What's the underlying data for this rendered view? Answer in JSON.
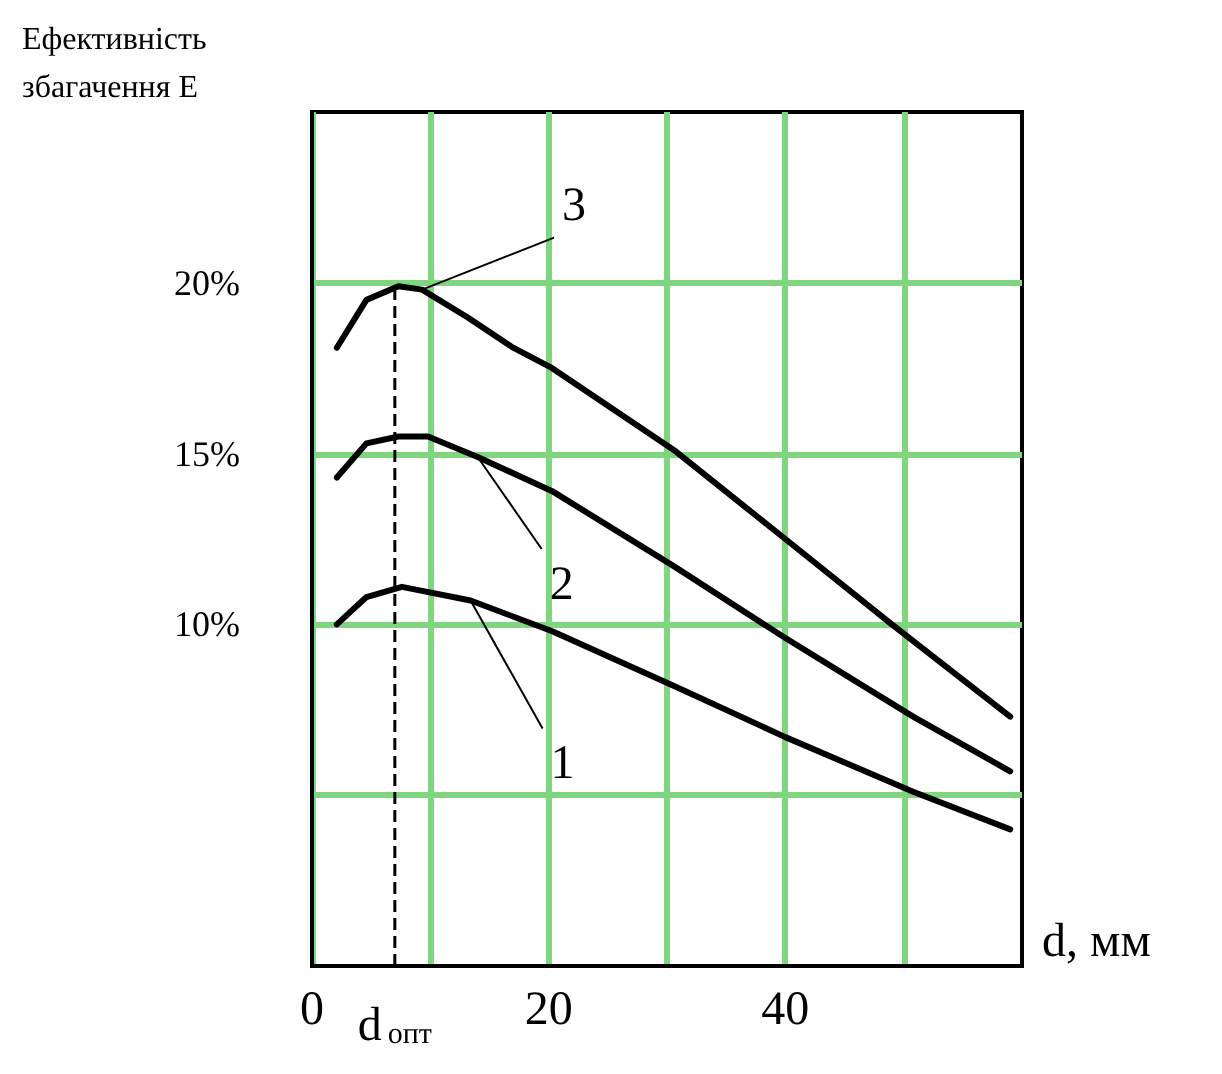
{
  "chart_data": {
    "type": "line",
    "ylabel": "Ефективність\nзбагачення Е",
    "xlabel": "d, мм",
    "xlim": [
      0,
      60
    ],
    "xticks": [
      0,
      {
        "value": 10,
        "label": null
      },
      20,
      {
        "value": 30,
        "label": null
      },
      40,
      {
        "value": 50,
        "label": null
      }
    ],
    "ylim": [
      0,
      25
    ],
    "yticks": [
      {
        "value": 5,
        "label": null
      },
      {
        "value": 10,
        "label": "10%"
      },
      {
        "value": 15,
        "label": "15%"
      },
      {
        "value": 20,
        "label": "20%"
      }
    ],
    "grid": true,
    "marker": "none",
    "line_style": "solid",
    "ref_lines": [
      {
        "axis": "x",
        "value": 7,
        "label": "d$_{опт}$",
        "line_style": "dashed",
        "color": "#000000"
      }
    ],
    "series": [
      {
        "name": "1",
        "color": "#000000",
        "x": [
          2.1,
          4.6,
          7.6,
          13.4,
          20.3,
          30.6,
          40,
          50.8,
          59
        ],
        "values": [
          10,
          10.8,
          11.1,
          10.7,
          9.8,
          8.2,
          6.7,
          5.1,
          4.0
        ]
      },
      {
        "name": "2",
        "color": "#000000",
        "x": [
          2.1,
          4.6,
          7.3,
          9.8,
          14,
          20.3,
          30.6,
          40,
          50.8,
          59
        ],
        "values": [
          14.3,
          15.3,
          15.5,
          15.5,
          14.9,
          13.9,
          11.7,
          9.6,
          7.3,
          5.7
        ]
      },
      {
        "name": "3",
        "color": "#000000",
        "x": [
          2.1,
          4.6,
          7.3,
          9.3,
          13.1,
          17,
          20.3,
          30.6,
          40,
          49,
          59
        ],
        "values": [
          18.1,
          19.5,
          19.9,
          19.8,
          19.0,
          18.1,
          17.5,
          15.1,
          12.5,
          10,
          7.3
        ]
      }
    ]
  }
}
